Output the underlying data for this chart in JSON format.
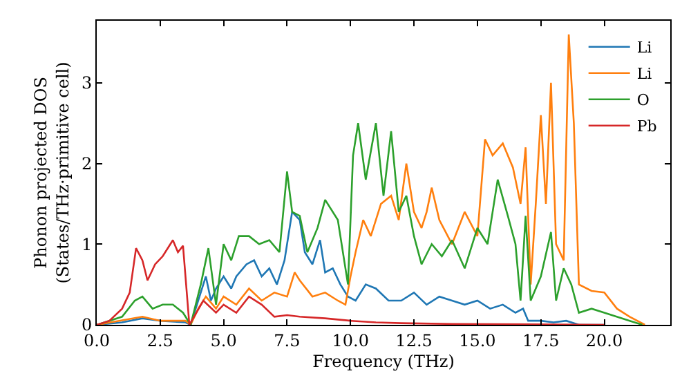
{
  "chart_data": {
    "type": "line",
    "xlabel": "Frequency (THz)",
    "ylabel": "Phonon projected DOS\n(States/THz·primitive cell)",
    "xlim": [
      0,
      22.6
    ],
    "ylim": [
      0,
      3.77
    ],
    "xticks": [
      {
        "value": 0,
        "label": "0.0"
      },
      2.5,
      {
        "value": 5,
        "label": "5.0"
      },
      7.5,
      {
        "value": 10,
        "label": "10.0"
      },
      12.5,
      {
        "value": 15,
        "label": "15.0"
      },
      17.5,
      {
        "value": 20,
        "label": "20.0"
      }
    ],
    "yticks": [
      0,
      1,
      2,
      3
    ],
    "legend": "top right",
    "line_style": "solid",
    "marker": "none",
    "series": [
      {
        "name": "Li",
        "color": "#1f77b4",
        "x": [
          0,
          1,
          1.8,
          2.5,
          3.5,
          3.7,
          4.0,
          4.3,
          4.5,
          4.7,
          5.0,
          5.3,
          5.5,
          5.9,
          6.2,
          6.5,
          6.8,
          7.1,
          7.4,
          7.7,
          8.0,
          8.2,
          8.5,
          8.8,
          9.0,
          9.3,
          9.6,
          9.9,
          10.2,
          10.6,
          11,
          11.5,
          12,
          12.5,
          13,
          13.5,
          14,
          14.5,
          15,
          15.5,
          16,
          16.5,
          16.8,
          17,
          17.5,
          18,
          18.5,
          19,
          20
        ],
        "values": [
          0,
          0.03,
          0.08,
          0.05,
          0.03,
          0,
          0.3,
          0.6,
          0.3,
          0.45,
          0.6,
          0.45,
          0.6,
          0.75,
          0.8,
          0.6,
          0.7,
          0.5,
          0.8,
          1.4,
          1.3,
          0.9,
          0.75,
          1.05,
          0.65,
          0.7,
          0.5,
          0.35,
          0.3,
          0.5,
          0.45,
          0.3,
          0.3,
          0.4,
          0.25,
          0.35,
          0.3,
          0.25,
          0.3,
          0.2,
          0.25,
          0.15,
          0.2,
          0.05,
          0.05,
          0.03,
          0.05,
          0,
          0
        ]
      },
      {
        "name": "Li",
        "color": "#ff7f0e",
        "x": [
          0,
          1.8,
          2.5,
          3.5,
          3.7,
          4.0,
          4.3,
          4.7,
          5.0,
          5.5,
          6.0,
          6.5,
          7.0,
          7.5,
          7.8,
          8.0,
          8.5,
          9.0,
          9.5,
          9.8,
          10.0,
          10.2,
          10.5,
          10.8,
          11.2,
          11.6,
          11.9,
          12.2,
          12.5,
          12.8,
          13.0,
          13.2,
          13.5,
          14,
          14.5,
          15.0,
          15.3,
          15.6,
          16.0,
          16.4,
          16.7,
          16.9,
          17.1,
          17.3,
          17.5,
          17.7,
          17.9,
          18.1,
          18.4,
          18.6,
          18.8,
          19.0,
          19.5,
          20.0,
          20.5,
          21,
          21.6
        ],
        "values": [
          0,
          0.1,
          0.05,
          0.05,
          0,
          0.2,
          0.35,
          0.2,
          0.35,
          0.25,
          0.45,
          0.3,
          0.4,
          0.35,
          0.65,
          0.55,
          0.35,
          0.4,
          0.3,
          0.25,
          0.6,
          0.9,
          1.3,
          1.1,
          1.5,
          1.6,
          1.3,
          2.0,
          1.4,
          1.2,
          1.4,
          1.7,
          1.3,
          1.0,
          1.4,
          1.1,
          2.3,
          2.1,
          2.25,
          1.95,
          1.5,
          2.2,
          0.5,
          1.5,
          2.6,
          1.5,
          3.0,
          1.0,
          0.8,
          3.6,
          2.5,
          0.5,
          0.42,
          0.4,
          0.2,
          0.1,
          0
        ]
      },
      {
        "name": "O",
        "color": "#2ca02c",
        "x": [
          0,
          1.0,
          1.5,
          1.8,
          2.2,
          2.6,
          3.0,
          3.4,
          3.7,
          4.1,
          4.4,
          4.7,
          5.0,
          5.3,
          5.6,
          6.0,
          6.4,
          6.8,
          7.2,
          7.5,
          7.7,
          8.0,
          8.3,
          8.7,
          9.0,
          9.5,
          9.9,
          10.1,
          10.3,
          10.6,
          11.0,
          11.3,
          11.6,
          11.9,
          12.2,
          12.5,
          12.8,
          13.2,
          13.6,
          14.0,
          14.5,
          15.0,
          15.4,
          15.8,
          16.2,
          16.5,
          16.7,
          16.9,
          17.1,
          17.5,
          17.9,
          18.1,
          18.4,
          18.7,
          19.0,
          19.5,
          20,
          21,
          21.5
        ],
        "values": [
          0,
          0.1,
          0.3,
          0.35,
          0.2,
          0.25,
          0.25,
          0.15,
          0,
          0.5,
          0.95,
          0.25,
          1.0,
          0.8,
          1.1,
          1.1,
          1.0,
          1.05,
          0.9,
          1.9,
          1.4,
          1.35,
          0.9,
          1.2,
          1.55,
          1.3,
          0.5,
          2.1,
          2.5,
          1.8,
          2.5,
          1.6,
          2.4,
          1.4,
          1.6,
          1.1,
          0.75,
          1.0,
          0.85,
          1.05,
          0.7,
          1.2,
          1.0,
          1.8,
          1.35,
          1.0,
          0.3,
          1.35,
          0.3,
          0.6,
          1.15,
          0.3,
          0.7,
          0.5,
          0.15,
          0.2,
          0.15,
          0.05,
          0
        ]
      },
      {
        "name": "Pb",
        "color": "#d62728",
        "x": [
          0,
          0.5,
          1.0,
          1.3,
          1.55,
          1.8,
          2.0,
          2.3,
          2.6,
          3.0,
          3.2,
          3.4,
          3.65,
          4.2,
          4.7,
          5.0,
          5.5,
          6.0,
          6.5,
          7,
          7.5,
          8,
          9,
          10,
          11,
          12,
          14,
          20
        ],
        "values": [
          0,
          0.05,
          0.2,
          0.4,
          0.95,
          0.8,
          0.55,
          0.75,
          0.85,
          1.05,
          0.9,
          0.98,
          0,
          0.3,
          0.15,
          0.25,
          0.15,
          0.35,
          0.25,
          0.1,
          0.12,
          0.1,
          0.08,
          0.05,
          0.03,
          0.02,
          0.01,
          0
        ]
      }
    ]
  }
}
